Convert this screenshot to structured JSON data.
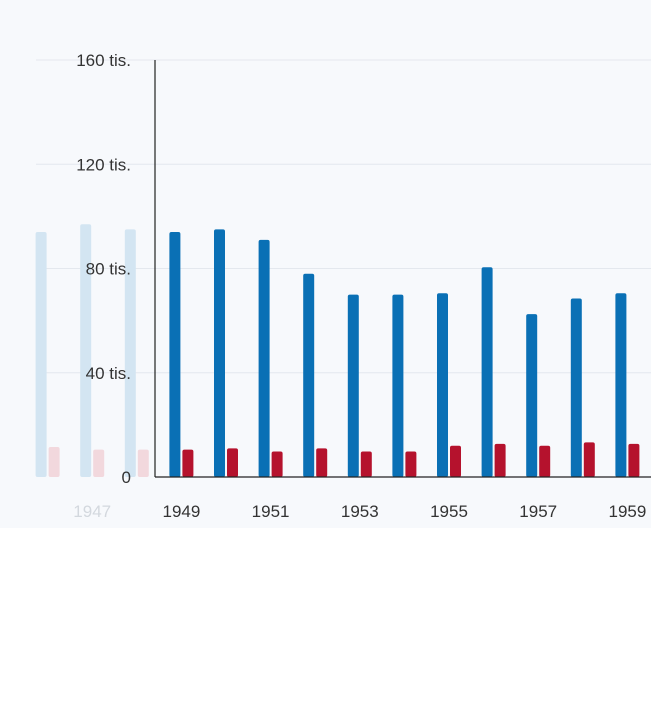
{
  "chart_data": {
    "type": "bar",
    "title": "",
    "xlabel": "",
    "ylabel": "",
    "ylim": [
      0,
      160000
    ],
    "y_ticks": [
      0,
      40000,
      80000,
      120000,
      160000
    ],
    "y_tick_labels": [
      "0",
      "40 tis.",
      "80 tis.",
      "120 tis.",
      "160 tis."
    ],
    "x_tick_years": [
      "1947",
      "1949",
      "1951",
      "1953",
      "1955",
      "1957",
      "1959"
    ],
    "grid": true,
    "faded_categories": [
      "1946",
      "1947",
      "1948"
    ],
    "categories": [
      "1946",
      "1947",
      "1948",
      "1949",
      "1950",
      "1951",
      "1952",
      "1953",
      "1954",
      "1955",
      "1956",
      "1957",
      "1958",
      "1959"
    ],
    "series": [
      {
        "values": [
          94000,
          97000,
          95000,
          94000,
          95000,
          91000,
          78000,
          70000,
          70000,
          70500,
          80500,
          62500,
          68500,
          70500
        ]
      },
      {
        "values": [
          11500,
          10500,
          10500,
          10500,
          11000,
          9800,
          11000,
          9800,
          9800,
          12000,
          12700,
          12000,
          13300,
          12700
        ]
      }
    ],
    "colors": {
      "series_1": "#0a70b5",
      "series_2": "#b5122d",
      "series_1_faded": "#d3e5f2",
      "series_2_faded": "#f2d8dd",
      "grid": "#e4e8ee",
      "axis": "#222222"
    }
  }
}
